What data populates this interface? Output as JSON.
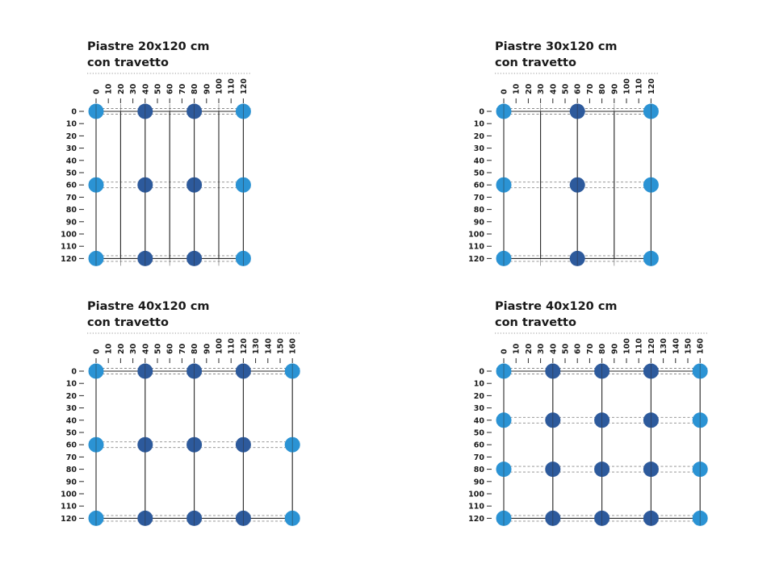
{
  "colors": {
    "edge_support": "#2b93d4",
    "center_support": "#2d5a9c",
    "line": "#2a2a2a",
    "dashed": "#888888"
  },
  "panels": [
    {
      "title_line1": "Piastre 20x120 cm",
      "title_line2": "con travetto",
      "x_ticks": [
        "0",
        "10",
        "20",
        "30",
        "40",
        "50",
        "60",
        "70",
        "80",
        "90",
        "100",
        "110",
        "120"
      ],
      "y_ticks": [
        "0",
        "10",
        "20",
        "30",
        "40",
        "50",
        "60",
        "70",
        "80",
        "90",
        "100",
        "110",
        "120"
      ],
      "x_max": 120,
      "y_max": 120,
      "support_x": [
        0,
        40,
        80,
        120
      ],
      "support_y": [
        0,
        60,
        120
      ],
      "slab_lines_x": [
        0,
        20,
        40,
        60,
        80,
        100,
        120
      ],
      "joist_lines_y": [
        0,
        120
      ]
    },
    {
      "title_line1": "Piastre 30x120 cm",
      "title_line2": "con travetto",
      "x_ticks": [
        "0",
        "10",
        "20",
        "30",
        "40",
        "50",
        "60",
        "70",
        "80",
        "90",
        "100",
        "110",
        "120"
      ],
      "y_ticks": [
        "0",
        "10",
        "20",
        "30",
        "40",
        "50",
        "60",
        "70",
        "80",
        "90",
        "100",
        "110",
        "120"
      ],
      "x_max": 120,
      "y_max": 120,
      "support_x": [
        0,
        60,
        120
      ],
      "support_y": [
        0,
        60,
        120
      ],
      "slab_lines_x": [
        0,
        30,
        60,
        90,
        120
      ],
      "joist_lines_y": [
        0,
        120
      ]
    },
    {
      "title_line1": "Piastre 40x120 cm",
      "title_line2": "con travetto",
      "x_ticks": [
        "0",
        "10",
        "20",
        "30",
        "40",
        "50",
        "60",
        "70",
        "80",
        "90",
        "100",
        "110",
        "120",
        "130",
        "140",
        "150",
        "160"
      ],
      "y_ticks": [
        "0",
        "10",
        "20",
        "30",
        "40",
        "50",
        "60",
        "70",
        "80",
        "90",
        "100",
        "110",
        "120"
      ],
      "x_max": 160,
      "y_max": 120,
      "support_x": [
        0,
        40,
        80,
        120,
        160
      ],
      "support_y": [
        0,
        60,
        120
      ],
      "slab_lines_x": [
        0,
        40,
        80,
        120,
        160
      ],
      "joist_lines_y": [
        0,
        120
      ]
    },
    {
      "title_line1": "Piastre 40x120 cm",
      "title_line2": "con travetto",
      "x_ticks": [
        "0",
        "10",
        "20",
        "30",
        "40",
        "50",
        "60",
        "70",
        "80",
        "90",
        "100",
        "110",
        "120",
        "130",
        "140",
        "150",
        "160"
      ],
      "y_ticks": [
        "0",
        "10",
        "20",
        "30",
        "40",
        "50",
        "60",
        "70",
        "80",
        "90",
        "100",
        "110",
        "120"
      ],
      "x_max": 160,
      "y_max": 120,
      "support_x": [
        0,
        40,
        80,
        120,
        160
      ],
      "support_y": [
        0,
        40,
        80,
        120
      ],
      "slab_lines_x": [
        0,
        40,
        80,
        120,
        160
      ],
      "joist_lines_y": [
        0,
        120
      ]
    }
  ]
}
